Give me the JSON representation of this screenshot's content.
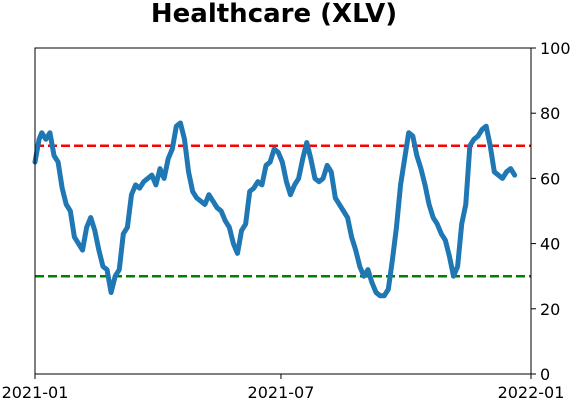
{
  "chart_data": {
    "type": "line",
    "title": "Healthcare (XLV)",
    "xlabel": "",
    "ylabel": "",
    "x_range": [
      "2021-01-01",
      "2022-01-01"
    ],
    "ylim": [
      0,
      100
    ],
    "x_ticks": [
      "2021-01",
      "2021-07",
      "2022-01"
    ],
    "y_ticks": [
      "0",
      "20",
      "40",
      "60",
      "80",
      "100"
    ],
    "y_axis_side": "right",
    "grid": false,
    "legend": "none",
    "series": [
      {
        "color": "#1f77b4",
        "x": [
          "2021-01-01",
          "2021-01-04",
          "2021-01-06",
          "2021-01-09",
          "2021-01-12",
          "2021-01-15",
          "2021-01-18",
          "2021-01-21",
          "2021-01-24",
          "2021-01-27",
          "2021-01-30",
          "2021-02-02",
          "2021-02-05",
          "2021-02-08",
          "2021-02-11",
          "2021-02-14",
          "2021-02-17",
          "2021-02-20",
          "2021-02-23",
          "2021-02-26",
          "2021-03-01",
          "2021-03-04",
          "2021-03-07",
          "2021-03-10",
          "2021-03-13",
          "2021-03-16",
          "2021-03-19",
          "2021-03-22",
          "2021-03-25",
          "2021-03-28",
          "2021-03-31",
          "2021-04-03",
          "2021-04-06",
          "2021-04-09",
          "2021-04-12",
          "2021-04-15",
          "2021-04-18",
          "2021-04-21",
          "2021-04-24",
          "2021-04-27",
          "2021-04-30",
          "2021-05-03",
          "2021-05-06",
          "2021-05-09",
          "2021-05-12",
          "2021-05-15",
          "2021-05-18",
          "2021-05-21",
          "2021-05-24",
          "2021-05-27",
          "2021-05-30",
          "2021-06-02",
          "2021-06-05",
          "2021-06-08",
          "2021-06-11",
          "2021-06-14",
          "2021-06-17",
          "2021-06-20",
          "2021-06-23",
          "2021-06-26",
          "2021-06-29",
          "2021-07-02",
          "2021-07-05",
          "2021-07-08",
          "2021-07-11",
          "2021-07-14",
          "2021-07-17",
          "2021-07-20",
          "2021-07-23",
          "2021-07-26",
          "2021-07-29",
          "2021-08-01",
          "2021-08-04",
          "2021-08-07",
          "2021-08-10",
          "2021-08-13",
          "2021-08-16",
          "2021-08-19",
          "2021-08-22",
          "2021-08-25",
          "2021-08-28",
          "2021-08-31",
          "2021-09-03",
          "2021-09-06",
          "2021-09-09",
          "2021-09-12",
          "2021-09-15",
          "2021-09-18",
          "2021-09-21",
          "2021-09-24",
          "2021-09-27",
          "2021-09-30",
          "2021-10-03",
          "2021-10-06",
          "2021-10-09",
          "2021-10-12",
          "2021-10-15",
          "2021-10-18",
          "2021-10-21",
          "2021-10-24",
          "2021-10-27",
          "2021-10-30",
          "2021-11-02",
          "2021-11-05",
          "2021-11-08",
          "2021-11-11",
          "2021-11-14",
          "2021-11-17",
          "2021-11-20",
          "2021-11-23",
          "2021-11-26",
          "2021-11-29",
          "2021-12-02",
          "2021-12-05",
          "2021-12-08",
          "2021-12-11",
          "2021-12-14",
          "2021-12-17",
          "2021-12-20"
        ],
        "values": [
          65,
          72,
          74,
          72,
          74,
          67,
          65,
          57,
          52,
          50,
          42,
          40,
          38,
          45,
          48,
          44,
          38,
          33,
          32,
          25,
          30,
          32,
          43,
          45,
          55,
          58,
          57,
          59,
          60,
          61,
          58,
          63,
          60,
          66,
          69,
          76,
          77,
          72,
          62,
          56,
          54,
          53,
          52,
          55,
          53,
          51,
          50,
          47,
          45,
          40,
          37,
          44,
          46,
          56,
          57,
          59,
          58,
          64,
          65,
          69,
          68,
          65,
          59,
          55,
          58,
          60,
          66,
          71,
          66,
          60,
          59,
          60,
          64,
          62,
          54,
          52,
          50,
          48,
          42,
          38,
          33,
          30,
          32,
          28,
          25,
          24,
          24,
          26,
          35,
          45,
          58,
          66,
          74,
          73,
          67,
          63,
          58,
          52,
          48,
          46,
          43,
          41,
          36,
          30,
          33,
          46,
          52,
          70,
          72,
          73,
          75,
          76,
          70,
          62,
          61,
          60,
          62,
          63,
          61
        ]
      }
    ],
    "reference_lines": [
      {
        "y": 70,
        "color": "#ff0000",
        "style": "dashed"
      },
      {
        "y": 30,
        "color": "#008000",
        "style": "dashed"
      }
    ]
  }
}
